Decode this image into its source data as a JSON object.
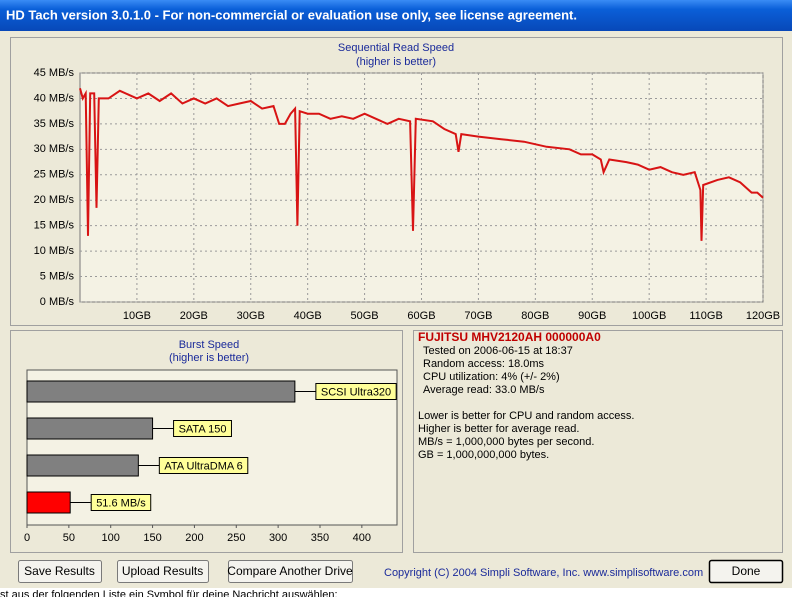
{
  "window": {
    "title": "HD Tach version 3.0.1.0  - For non-commercial or evaluation use only, see license agreement."
  },
  "chart_data": [
    {
      "type": "line",
      "title": "Sequential Read Speed",
      "subtitle": "(higher is better)",
      "x": [
        0,
        0.5,
        1,
        1.4,
        1.8,
        2.5,
        2.9,
        3.3,
        5,
        7,
        10,
        12,
        14,
        16,
        18,
        20,
        22,
        24,
        26,
        28,
        30,
        32,
        34,
        35,
        36,
        37,
        37.8,
        38.2,
        38.6,
        40,
        42,
        44,
        46,
        48,
        50,
        52,
        54,
        56,
        58,
        58.5,
        59,
        62,
        64,
        66,
        66.5,
        67,
        70,
        74,
        78,
        82,
        86,
        88,
        90,
        91.5,
        92,
        93,
        96,
        98,
        100,
        102,
        104,
        106,
        108,
        109,
        109.2,
        109.5,
        112,
        114,
        116,
        118,
        119,
        120
      ],
      "series": [
        {
          "color": "#d81414",
          "values": [
            42,
            40,
            41,
            13,
            41,
            41,
            18.5,
            40,
            40,
            41.5,
            40,
            41,
            39.5,
            41,
            39,
            40,
            39,
            40,
            38.5,
            39,
            39.5,
            38,
            38.5,
            35,
            35,
            37,
            38,
            15,
            37.5,
            37,
            37,
            36,
            36.5,
            36,
            37,
            36,
            35,
            36,
            35.5,
            14,
            36,
            35.5,
            34,
            33,
            29.5,
            33,
            32.5,
            32,
            31.5,
            30.5,
            30,
            29,
            29,
            28,
            25.5,
            28,
            27.5,
            27,
            26,
            26.5,
            25.5,
            25,
            25.5,
            22,
            12,
            23,
            24,
            24.5,
            23.5,
            21.5,
            21.5,
            20.5
          ]
        }
      ],
      "xlim": [
        0,
        120
      ],
      "ylim": [
        0,
        45
      ],
      "xticks": [
        {
          "value": 10,
          "label": "10GB"
        },
        {
          "value": 20,
          "label": "20GB"
        },
        {
          "value": 30,
          "label": "30GB"
        },
        {
          "value": 40,
          "label": "40GB"
        },
        {
          "value": 50,
          "label": "50GB"
        },
        {
          "value": 60,
          "label": "60GB"
        },
        {
          "value": 70,
          "label": "70GB"
        },
        {
          "value": 80,
          "label": "80GB"
        },
        {
          "value": 90,
          "label": "90GB"
        },
        {
          "value": 100,
          "label": "100GB"
        },
        {
          "value": 110,
          "label": "110GB"
        },
        {
          "value": 120,
          "label": "120GB"
        }
      ],
      "yticks": [
        {
          "value": 0,
          "label": "0 MB/s"
        },
        {
          "value": 5,
          "label": "5 MB/s"
        },
        {
          "value": 10,
          "label": "10 MB/s"
        },
        {
          "value": 15,
          "label": "15 MB/s"
        },
        {
          "value": 20,
          "label": "20 MB/s"
        },
        {
          "value": 25,
          "label": "25 MB/s"
        },
        {
          "value": 30,
          "label": "30 MB/s"
        },
        {
          "value": 35,
          "label": "35 MB/s"
        },
        {
          "value": 40,
          "label": "40 MB/s"
        },
        {
          "value": 45,
          "label": "45 MB/s"
        }
      ],
      "grid": true
    },
    {
      "type": "hbar",
      "title": "Burst Speed",
      "subtitle": "(higher is better)",
      "categories": [
        "SCSI Ultra320",
        "SATA 150",
        "ATA UltraDMA 6",
        null
      ],
      "values": [
        320,
        150,
        133,
        51.6
      ],
      "value_labels": [
        null,
        null,
        null,
        "51.6 MB/s"
      ],
      "colors": [
        "#808080",
        "#808080",
        "#808080",
        "#ff0000"
      ],
      "xlim": [
        0,
        442
      ],
      "xticks": [
        0,
        50,
        100,
        150,
        200,
        250,
        300,
        350,
        400
      ],
      "grid": false
    }
  ],
  "info": {
    "drive": "FUJITSU MHV2120AH 000000A0",
    "lines": [
      "Tested on 2006-06-15 at 18:37",
      "Random access: 18.0ms",
      "CPU utilization: 4% (+/- 2%)",
      "Average read: 33.0 MB/s"
    ],
    "notes": [
      "Lower is better for CPU and random access.",
      "Higher is better for average read.",
      "MB/s = 1,000,000 bytes per second.",
      "GB = 1,000,000,000 bytes."
    ]
  },
  "buttons": [
    "Save Results",
    "Upload Results",
    "Compare Another Drive"
  ],
  "copyright": "Copyright (C) 2004 Simpli Software, Inc. www.simplisoftware.com",
  "done": "Done",
  "status_text": "st aus der folgenden Liste ein Symbol für deine Nachricht auswählen:"
}
